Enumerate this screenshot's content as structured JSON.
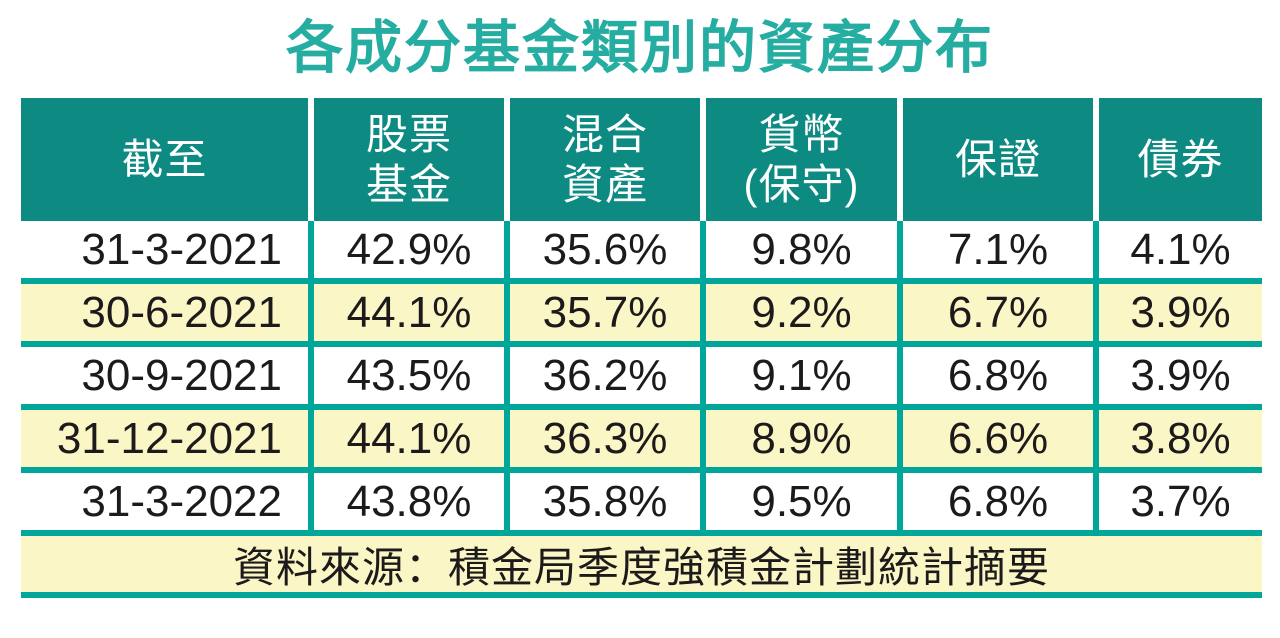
{
  "title": "各成分基金類別的資產分布",
  "colors": {
    "title_teal": "#26ADA2",
    "header_teal": "#0D8B83",
    "divider_teal": "#00A69A",
    "row_yellow": "#FAF6C5",
    "row_white": "#FFFFFF",
    "text_black": "#1D1A1B",
    "header_text": "#FFFFFF"
  },
  "table": {
    "header": [
      {
        "line1": "截至",
        "line2": ""
      },
      {
        "line1": "股票",
        "line2": "基金"
      },
      {
        "line1": "混合",
        "line2": "資產"
      },
      {
        "line1": "貨幣",
        "line2": "(保守)"
      },
      {
        "line1": "保證",
        "line2": ""
      },
      {
        "line1": "債券",
        "line2": ""
      }
    ],
    "rows": [
      {
        "cells": [
          "31-3-2021",
          "42.9%",
          "35.6%",
          "9.8%",
          "7.1%",
          "4.1%"
        ]
      },
      {
        "cells": [
          "30-6-2021",
          "44.1%",
          "35.7%",
          "9.2%",
          "6.7%",
          "3.9%"
        ]
      },
      {
        "cells": [
          "30-9-2021",
          "43.5%",
          "36.2%",
          "9.1%",
          "6.8%",
          "3.9%"
        ]
      },
      {
        "cells": [
          "31-12-2021",
          "44.1%",
          "36.3%",
          "8.9%",
          "6.6%",
          "3.8%"
        ]
      },
      {
        "cells": [
          "31-3-2022",
          "43.8%",
          "35.8%",
          "9.5%",
          "6.8%",
          "3.7%"
        ]
      }
    ],
    "source": "資料來源：積金局季度強積金計劃統計摘要"
  },
  "chart_data": {
    "type": "table",
    "title": "各成分基金類別的資產分布",
    "categories": [
      "31-3-2021",
      "30-6-2021",
      "30-9-2021",
      "31-12-2021",
      "31-3-2022"
    ],
    "series": [
      {
        "name": "股票基金",
        "values": [
          42.9,
          44.1,
          43.5,
          44.1,
          43.8
        ]
      },
      {
        "name": "混合資產",
        "values": [
          35.6,
          35.7,
          36.2,
          36.3,
          35.8
        ]
      },
      {
        "name": "貨幣(保守)",
        "values": [
          9.8,
          9.2,
          9.1,
          8.9,
          9.5
        ]
      },
      {
        "name": "保證",
        "values": [
          7.1,
          6.7,
          6.8,
          6.6,
          6.8
        ]
      },
      {
        "name": "債券",
        "values": [
          4.1,
          3.9,
          3.9,
          3.8,
          3.7
        ]
      }
    ],
    "unit": "%",
    "row_label": "截至",
    "source": "資料來源：積金局季度強積金計劃統計摘要"
  }
}
